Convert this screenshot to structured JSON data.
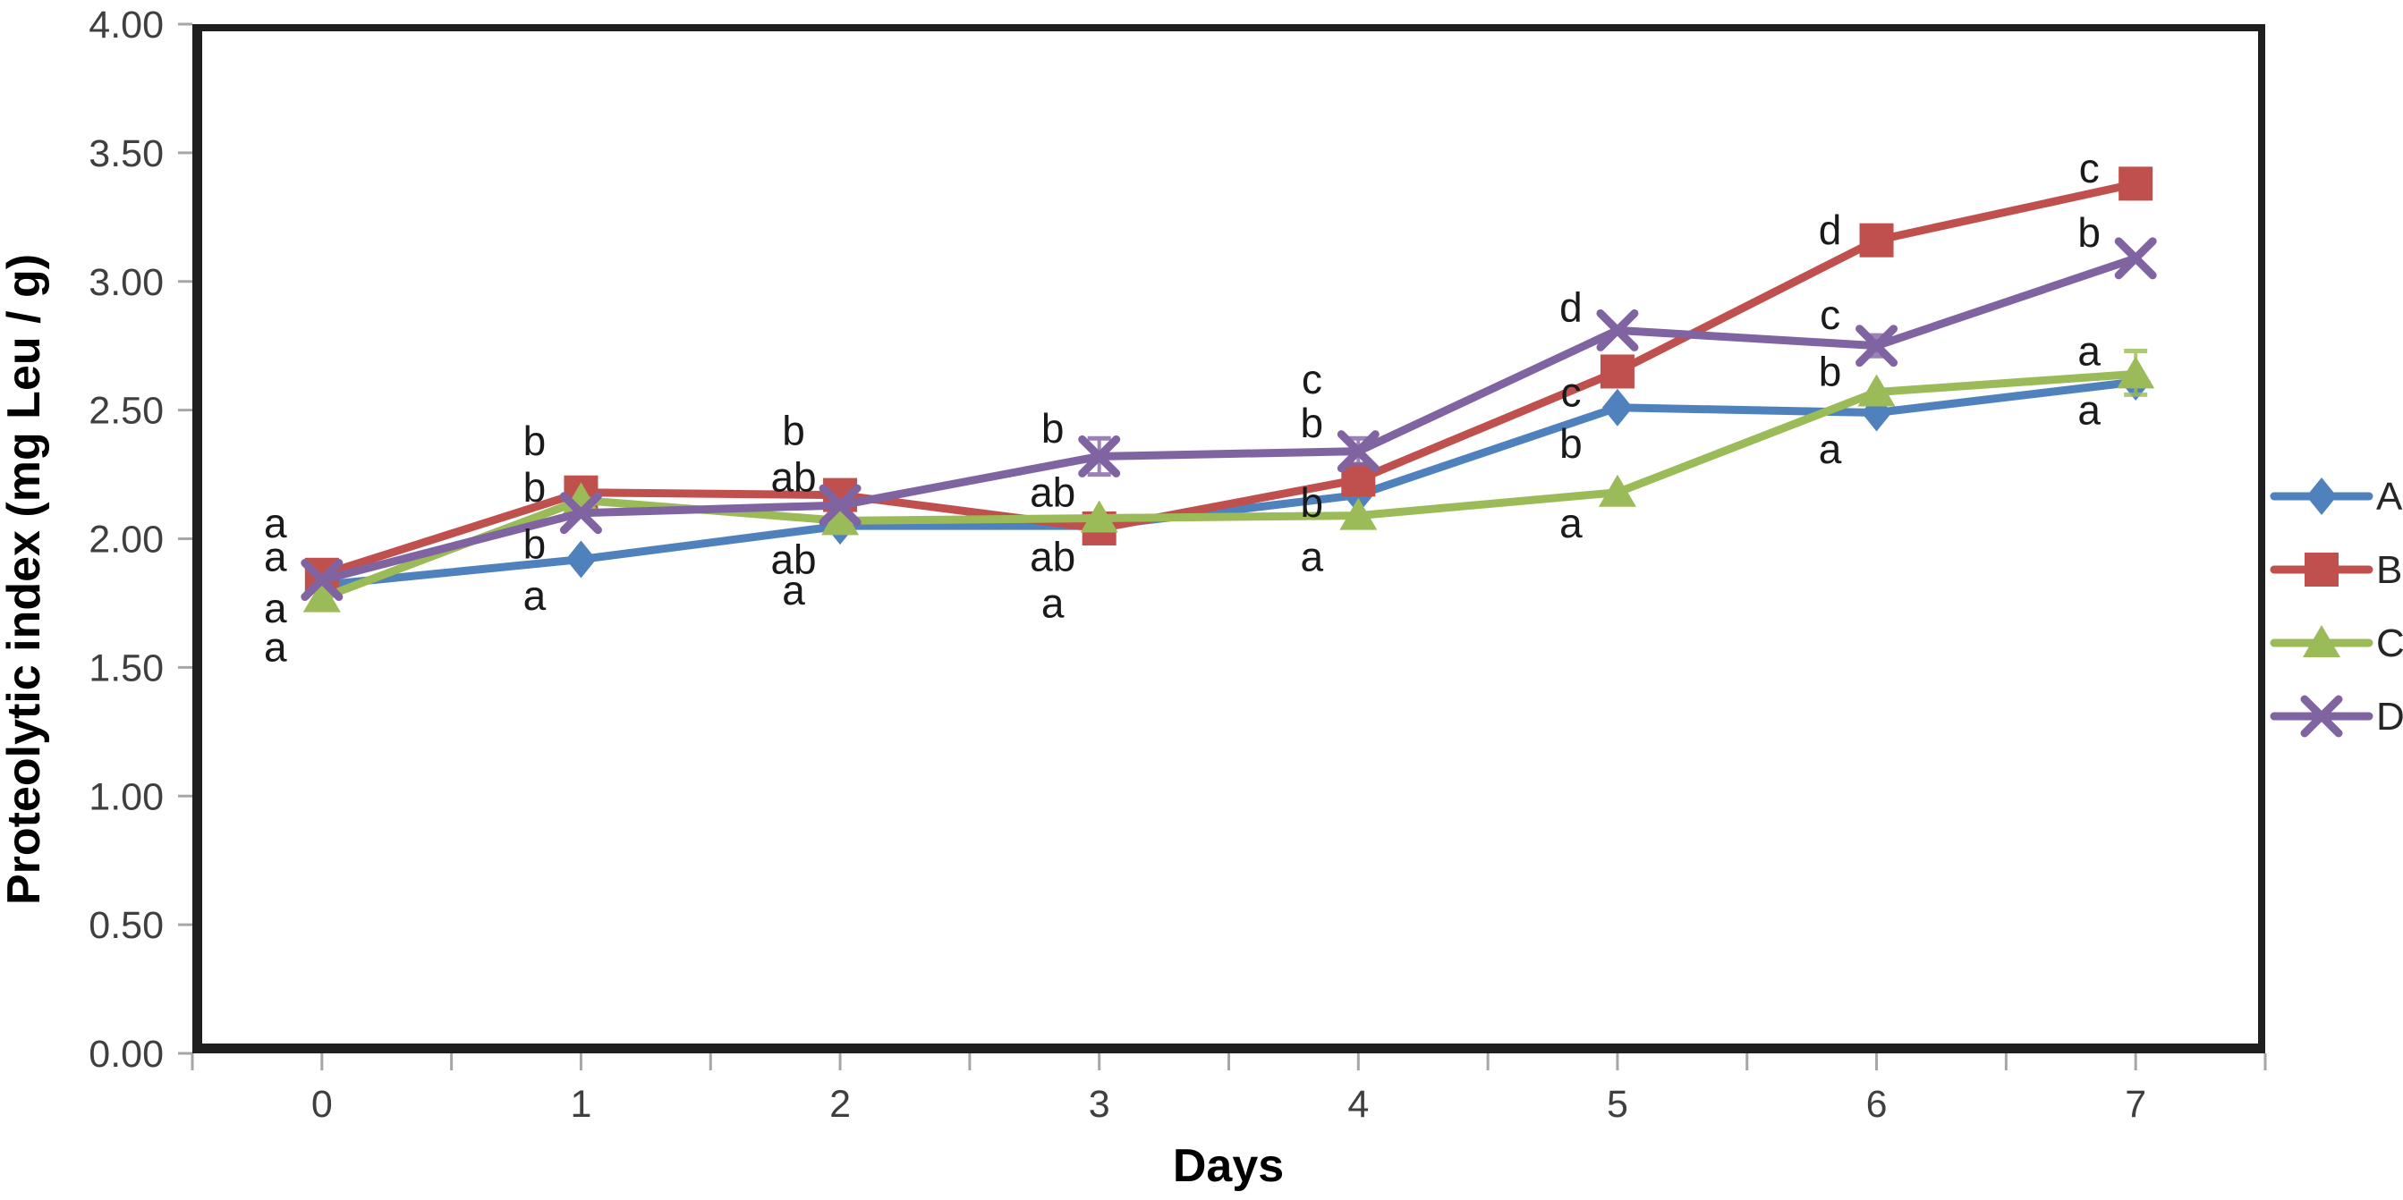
{
  "y_axis": {
    "title": "Proteolytic index (mg Leu / g)",
    "min": 0,
    "max": 4,
    "step": 0.5,
    "tick_labels": [
      "0.00",
      "0.50",
      "1.00",
      "1.50",
      "2.00",
      "2.50",
      "3.00",
      "3.50",
      "4.00"
    ]
  },
  "x_axis": {
    "title": "Days",
    "tick_labels": [
      "0",
      "1",
      "2",
      "3",
      "4",
      "5",
      "6",
      "7"
    ]
  },
  "colors": {
    "axis_frame": "#1f1f1f",
    "tick_mark": "#a6a6a6",
    "tick_text": "#3f3f3f",
    "annotation_text": "#1a1a1a"
  },
  "legend": {
    "position": "right",
    "items": [
      "A",
      "B",
      "C",
      "D"
    ]
  },
  "chart_data": {
    "type": "line",
    "title": "",
    "xlabel": "Days",
    "ylabel": "Proteolytic index (mg Leu / g)",
    "x": [
      0,
      1,
      2,
      3,
      4,
      5,
      6,
      7
    ],
    "ylim": [
      0,
      4
    ],
    "grid": false,
    "legend_position": "right-outside",
    "series": [
      {
        "name": "A",
        "color": "#4F81BD",
        "marker": "diamond",
        "values": [
          1.82,
          1.92,
          2.05,
          2.05,
          2.17,
          2.51,
          2.49,
          2.61
        ]
      },
      {
        "name": "B",
        "color": "#C0504D",
        "marker": "square",
        "values": [
          1.86,
          2.18,
          2.17,
          2.04,
          2.23,
          2.65,
          3.16,
          3.38
        ]
      },
      {
        "name": "C",
        "color": "#9BBB59",
        "marker": "triangle",
        "values": [
          1.77,
          2.15,
          2.07,
          2.08,
          2.09,
          2.18,
          2.57,
          2.64
        ]
      },
      {
        "name": "D",
        "color": "#8064A2",
        "marker": "x",
        "values": [
          1.84,
          2.1,
          2.13,
          2.32,
          2.34,
          2.81,
          2.75,
          3.09
        ]
      }
    ],
    "error_bars": [
      {
        "series": "D",
        "day": 3,
        "plus": 0.07,
        "minus": 0.07
      },
      {
        "series": "D",
        "day": 4,
        "plus": 0.05,
        "minus": 0.05
      },
      {
        "series": "D",
        "day": 6,
        "plus": 0.04,
        "minus": 0.04
      },
      {
        "series": "C",
        "day": 7,
        "plus": 0.09,
        "minus": 0.08
      }
    ],
    "annotations": [
      {
        "day": 0,
        "value": 2.06,
        "text": "a"
      },
      {
        "day": 0,
        "value": 1.93,
        "text": "a"
      },
      {
        "day": 0,
        "value": 1.73,
        "text": "a"
      },
      {
        "day": 0,
        "value": 1.58,
        "text": "a"
      },
      {
        "day": 1,
        "value": 2.38,
        "text": "b"
      },
      {
        "day": 1,
        "value": 2.2,
        "text": "b"
      },
      {
        "day": 1,
        "value": 1.98,
        "text": "b"
      },
      {
        "day": 1,
        "value": 1.78,
        "text": "a"
      },
      {
        "day": 2,
        "value": 2.42,
        "text": "b"
      },
      {
        "day": 2,
        "value": 2.24,
        "text": "ab"
      },
      {
        "day": 2,
        "value": 1.92,
        "text": "ab"
      },
      {
        "day": 2,
        "value": 1.8,
        "text": "a"
      },
      {
        "day": 3,
        "value": 2.43,
        "text": "b"
      },
      {
        "day": 3,
        "value": 2.18,
        "text": "ab"
      },
      {
        "day": 3,
        "value": 1.93,
        "text": "ab"
      },
      {
        "day": 3,
        "value": 1.75,
        "text": "a"
      },
      {
        "day": 4,
        "value": 2.62,
        "text": "c"
      },
      {
        "day": 4,
        "value": 2.45,
        "text": "b"
      },
      {
        "day": 4,
        "value": 2.14,
        "text": "b"
      },
      {
        "day": 4,
        "value": 1.93,
        "text": "a"
      },
      {
        "day": 5,
        "value": 2.9,
        "text": "d"
      },
      {
        "day": 5,
        "value": 2.57,
        "text": "c"
      },
      {
        "day": 5,
        "value": 2.37,
        "text": "b"
      },
      {
        "day": 5,
        "value": 2.06,
        "text": "a"
      },
      {
        "day": 6,
        "value": 3.2,
        "text": "d"
      },
      {
        "day": 6,
        "value": 2.87,
        "text": "c"
      },
      {
        "day": 6,
        "value": 2.65,
        "text": "b"
      },
      {
        "day": 6,
        "value": 2.35,
        "text": "a"
      },
      {
        "day": 7,
        "value": 3.44,
        "text": "c"
      },
      {
        "day": 7,
        "value": 3.19,
        "text": "b"
      },
      {
        "day": 7,
        "value": 2.73,
        "text": "a"
      },
      {
        "day": 7,
        "value": 2.5,
        "text": "a"
      }
    ]
  }
}
